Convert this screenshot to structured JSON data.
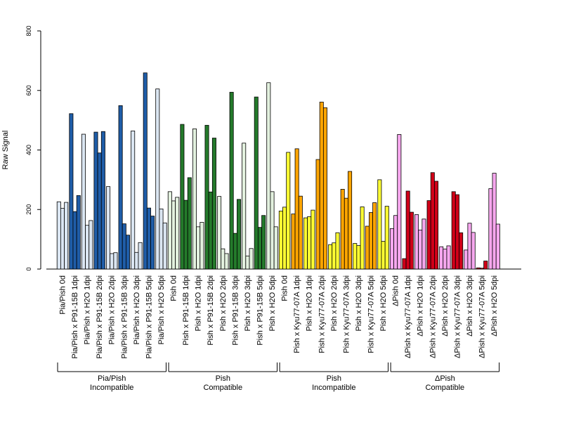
{
  "chart_data": {
    "type": "bar",
    "ylabel": "Raw Signal",
    "xlabel": "",
    "ylim": [
      0,
      800
    ],
    "yticks": [
      0,
      200,
      400,
      600,
      800
    ],
    "grid": false,
    "categories": [
      "Pia/Pish 0d",
      "Pia/Pish x P91-15B 1dpi",
      "Pia/Pish x H2O 1dpi",
      "Pia/Pish x P91-15B 2dpi",
      "Pia/Pish x H2O 2dpi",
      "Pia/Pish x P91-15B 3dpi",
      "Pia/Pish x H2O 3dpi",
      "Pia/Pish x P91-15B 5dpi",
      "Pia/Pish x H2O 5dpi",
      "Pish 0d",
      "Pish x P91-15B 1dpi",
      "Pish x H2O 1dpi",
      "Pish x P91-15B 2dpi",
      "Pish x H2O 2dpi",
      "Pish x P91-15B 3dpi",
      "Pish x H2O 3dpi",
      "Pish x P91-15B 5dpi",
      "Pish x H2O 5dpi",
      "Pish 0d",
      "Pish x Kyu77-07A 1dpi",
      "Pish x H2O 1dpi",
      "Pish x Kyu77-07A 2dpi",
      "Pish x H2O 2dpi",
      "Pish x Kyu77-07A 3dpi",
      "Pish x H2O 3dpi",
      "Pish x Kyu77-07A 5dpi",
      "Pish x H2O 5dpi",
      "ΔPish 0d",
      "ΔPish x Kyu77-07A 1dpi",
      "ΔPish x H2O 1dpi",
      "ΔPish x Kyu77-07A 2dpi",
      "ΔPish x H2O 2dpi",
      "ΔPish x Kyu77-07A 3dpi",
      "ΔPish x H2O 3dpi",
      "ΔPish x Kyu77-07A 5dpi",
      "ΔPish x H2O 5dpi"
    ],
    "colors": [
      "#dbe6f2",
      "#1f5da8",
      "#dbe6f2",
      "#1f5da8",
      "#dbe6f2",
      "#1f5da8",
      "#dbe6f2",
      "#1f5da8",
      "#dbe6f2",
      "#e3f1df",
      "#247a2b",
      "#e3f1df",
      "#247a2b",
      "#e3f1df",
      "#247a2b",
      "#e3f1df",
      "#247a2b",
      "#e3f1df",
      "#ffff33",
      "#ffa500",
      "#ffff33",
      "#ffa500",
      "#ffff33",
      "#ffa500",
      "#ffff33",
      "#ffa500",
      "#ffff33",
      "#f7a8ef",
      "#d00018",
      "#f7a8ef",
      "#d00018",
      "#f7a8ef",
      "#d00018",
      "#f7a8ef",
      "#d00018",
      "#f7a8ef"
    ],
    "values": [
      [
        226,
        204,
        224
      ],
      [
        522,
        193,
        247
      ],
      [
        453,
        147,
        163
      ],
      [
        460,
        390,
        462
      ],
      [
        277,
        52,
        55
      ],
      [
        549,
        152,
        114
      ],
      [
        464,
        56,
        89
      ],
      [
        659,
        205,
        178
      ],
      [
        605,
        202,
        155
      ],
      [
        260,
        229,
        241
      ],
      [
        486,
        231,
        307
      ],
      [
        471,
        142,
        157
      ],
      [
        483,
        259,
        440
      ],
      [
        244,
        68,
        52
      ],
      [
        594,
        120,
        234
      ],
      [
        423,
        44,
        69
      ],
      [
        578,
        140,
        180
      ],
      [
        626,
        260,
        142
      ],
      [
        195,
        208,
        392
      ],
      [
        185,
        404,
        245
      ],
      [
        172,
        176,
        198
      ],
      [
        368,
        561,
        542
      ],
      [
        82,
        88,
        122
      ],
      [
        268,
        238,
        328
      ],
      [
        86,
        79,
        209
      ],
      [
        144,
        190,
        223
      ],
      [
        300,
        93,
        211
      ],
      [
        136,
        180,
        452
      ],
      [
        35,
        262,
        191
      ],
      [
        183,
        131,
        168
      ],
      [
        230,
        324,
        295
      ],
      [
        75,
        67,
        78
      ],
      [
        260,
        250,
        122
      ],
      [
        64,
        154,
        123
      ],
      [
        4,
        3,
        27
      ],
      [
        270,
        322,
        151
      ]
    ],
    "groups": [
      {
        "line1": "Pia/Pish",
        "line2": "Incompatible",
        "start": 0,
        "end": 8
      },
      {
        "line1": "Pish",
        "line2": "Compatible",
        "start": 9,
        "end": 17
      },
      {
        "line1": "Pish",
        "line2": "Incompatible",
        "start": 18,
        "end": 26
      },
      {
        "line1": "ΔPish",
        "line2": "Compatible",
        "start": 27,
        "end": 35
      }
    ]
  }
}
